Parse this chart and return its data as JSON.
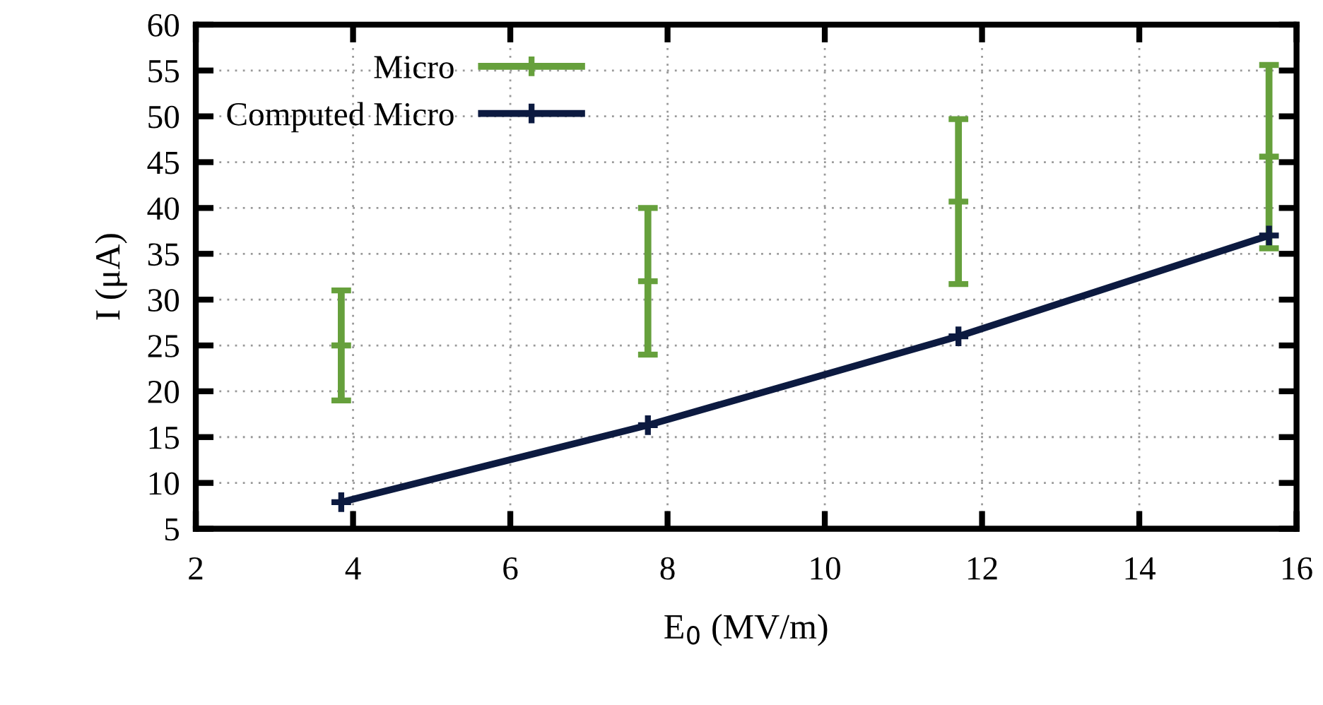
{
  "chart_data": {
    "type": "line",
    "xlabel": "E$_{0}$ (MV/m)",
    "ylabel": "I (μA)",
    "xlim": [
      2,
      16
    ],
    "xticks": [
      2,
      4,
      6,
      8,
      10,
      12,
      14,
      16
    ],
    "ylim": [
      5,
      60
    ],
    "yticks": [
      5,
      10,
      15,
      20,
      25,
      30,
      35,
      40,
      45,
      50,
      55,
      60
    ],
    "grid": true,
    "legend": "top left",
    "marker": "cross",
    "series": [
      {
        "name": "Micro",
        "type": "scatter",
        "color": "#66a03c",
        "x": [
          3.85,
          7.75,
          11.7,
          15.65
        ],
        "values": [
          25,
          32,
          40.7,
          45.6
        ],
        "errors": [
          6,
          [
            24,
            40
          ],
          9,
          10
        ]
      },
      {
        "name": "Computed Micro",
        "color": "#0c1a40",
        "x": [
          3.85,
          7.75,
          11.7,
          15.65
        ],
        "values": [
          7.9,
          16.3,
          26.0,
          37.0
        ]
      }
    ]
  }
}
